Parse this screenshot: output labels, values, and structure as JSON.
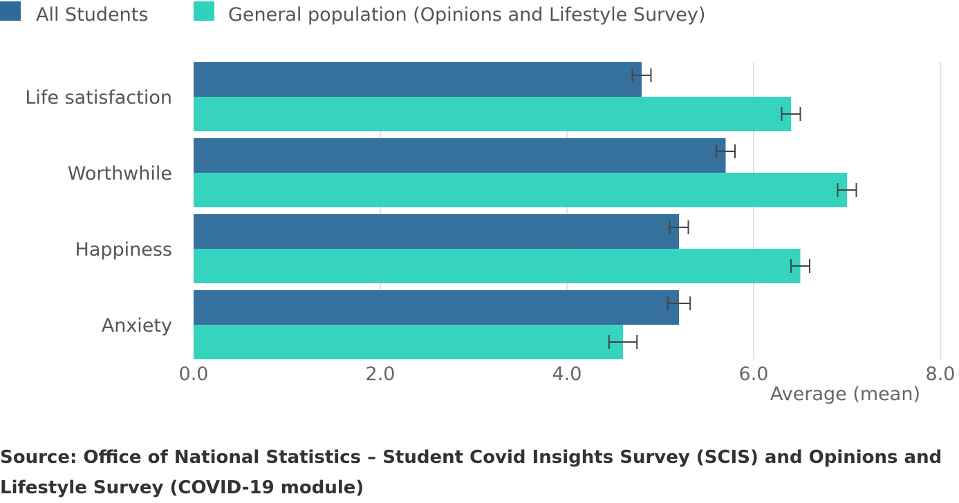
{
  "chart_data": {
    "type": "bar",
    "orientation": "horizontal",
    "categories": [
      "Life satisfaction",
      "Worthwhile",
      "Happiness",
      "Anxiety"
    ],
    "series": [
      {
        "name": "All Students",
        "color": "#2f6b9a",
        "values": [
          4.8,
          5.7,
          5.2,
          5.2
        ],
        "error": [
          0.1,
          0.1,
          0.1,
          0.12
        ]
      },
      {
        "name": "General population (Opinions and Lifestyle Survey)",
        "color": "#2fd2bd",
        "values": [
          6.4,
          7.0,
          6.5,
          4.6
        ],
        "error": [
          0.1,
          0.1,
          0.1,
          0.15
        ]
      }
    ],
    "xlim": [
      0,
      8
    ],
    "xticks": [
      0,
      2,
      4,
      6,
      8
    ],
    "xtick_labels": [
      "0.0",
      "2.0",
      "4.0",
      "6.0",
      "8.0"
    ],
    "xlabel": "Average (mean)",
    "ylabel": "",
    "title": "",
    "grid": true,
    "legend_position": "top-left"
  },
  "source_note": "Source: Office of National Statistics – Student Covid Insights Survey (SCIS) and Opinions and Lifestyle Survey (COVID-19 module)"
}
